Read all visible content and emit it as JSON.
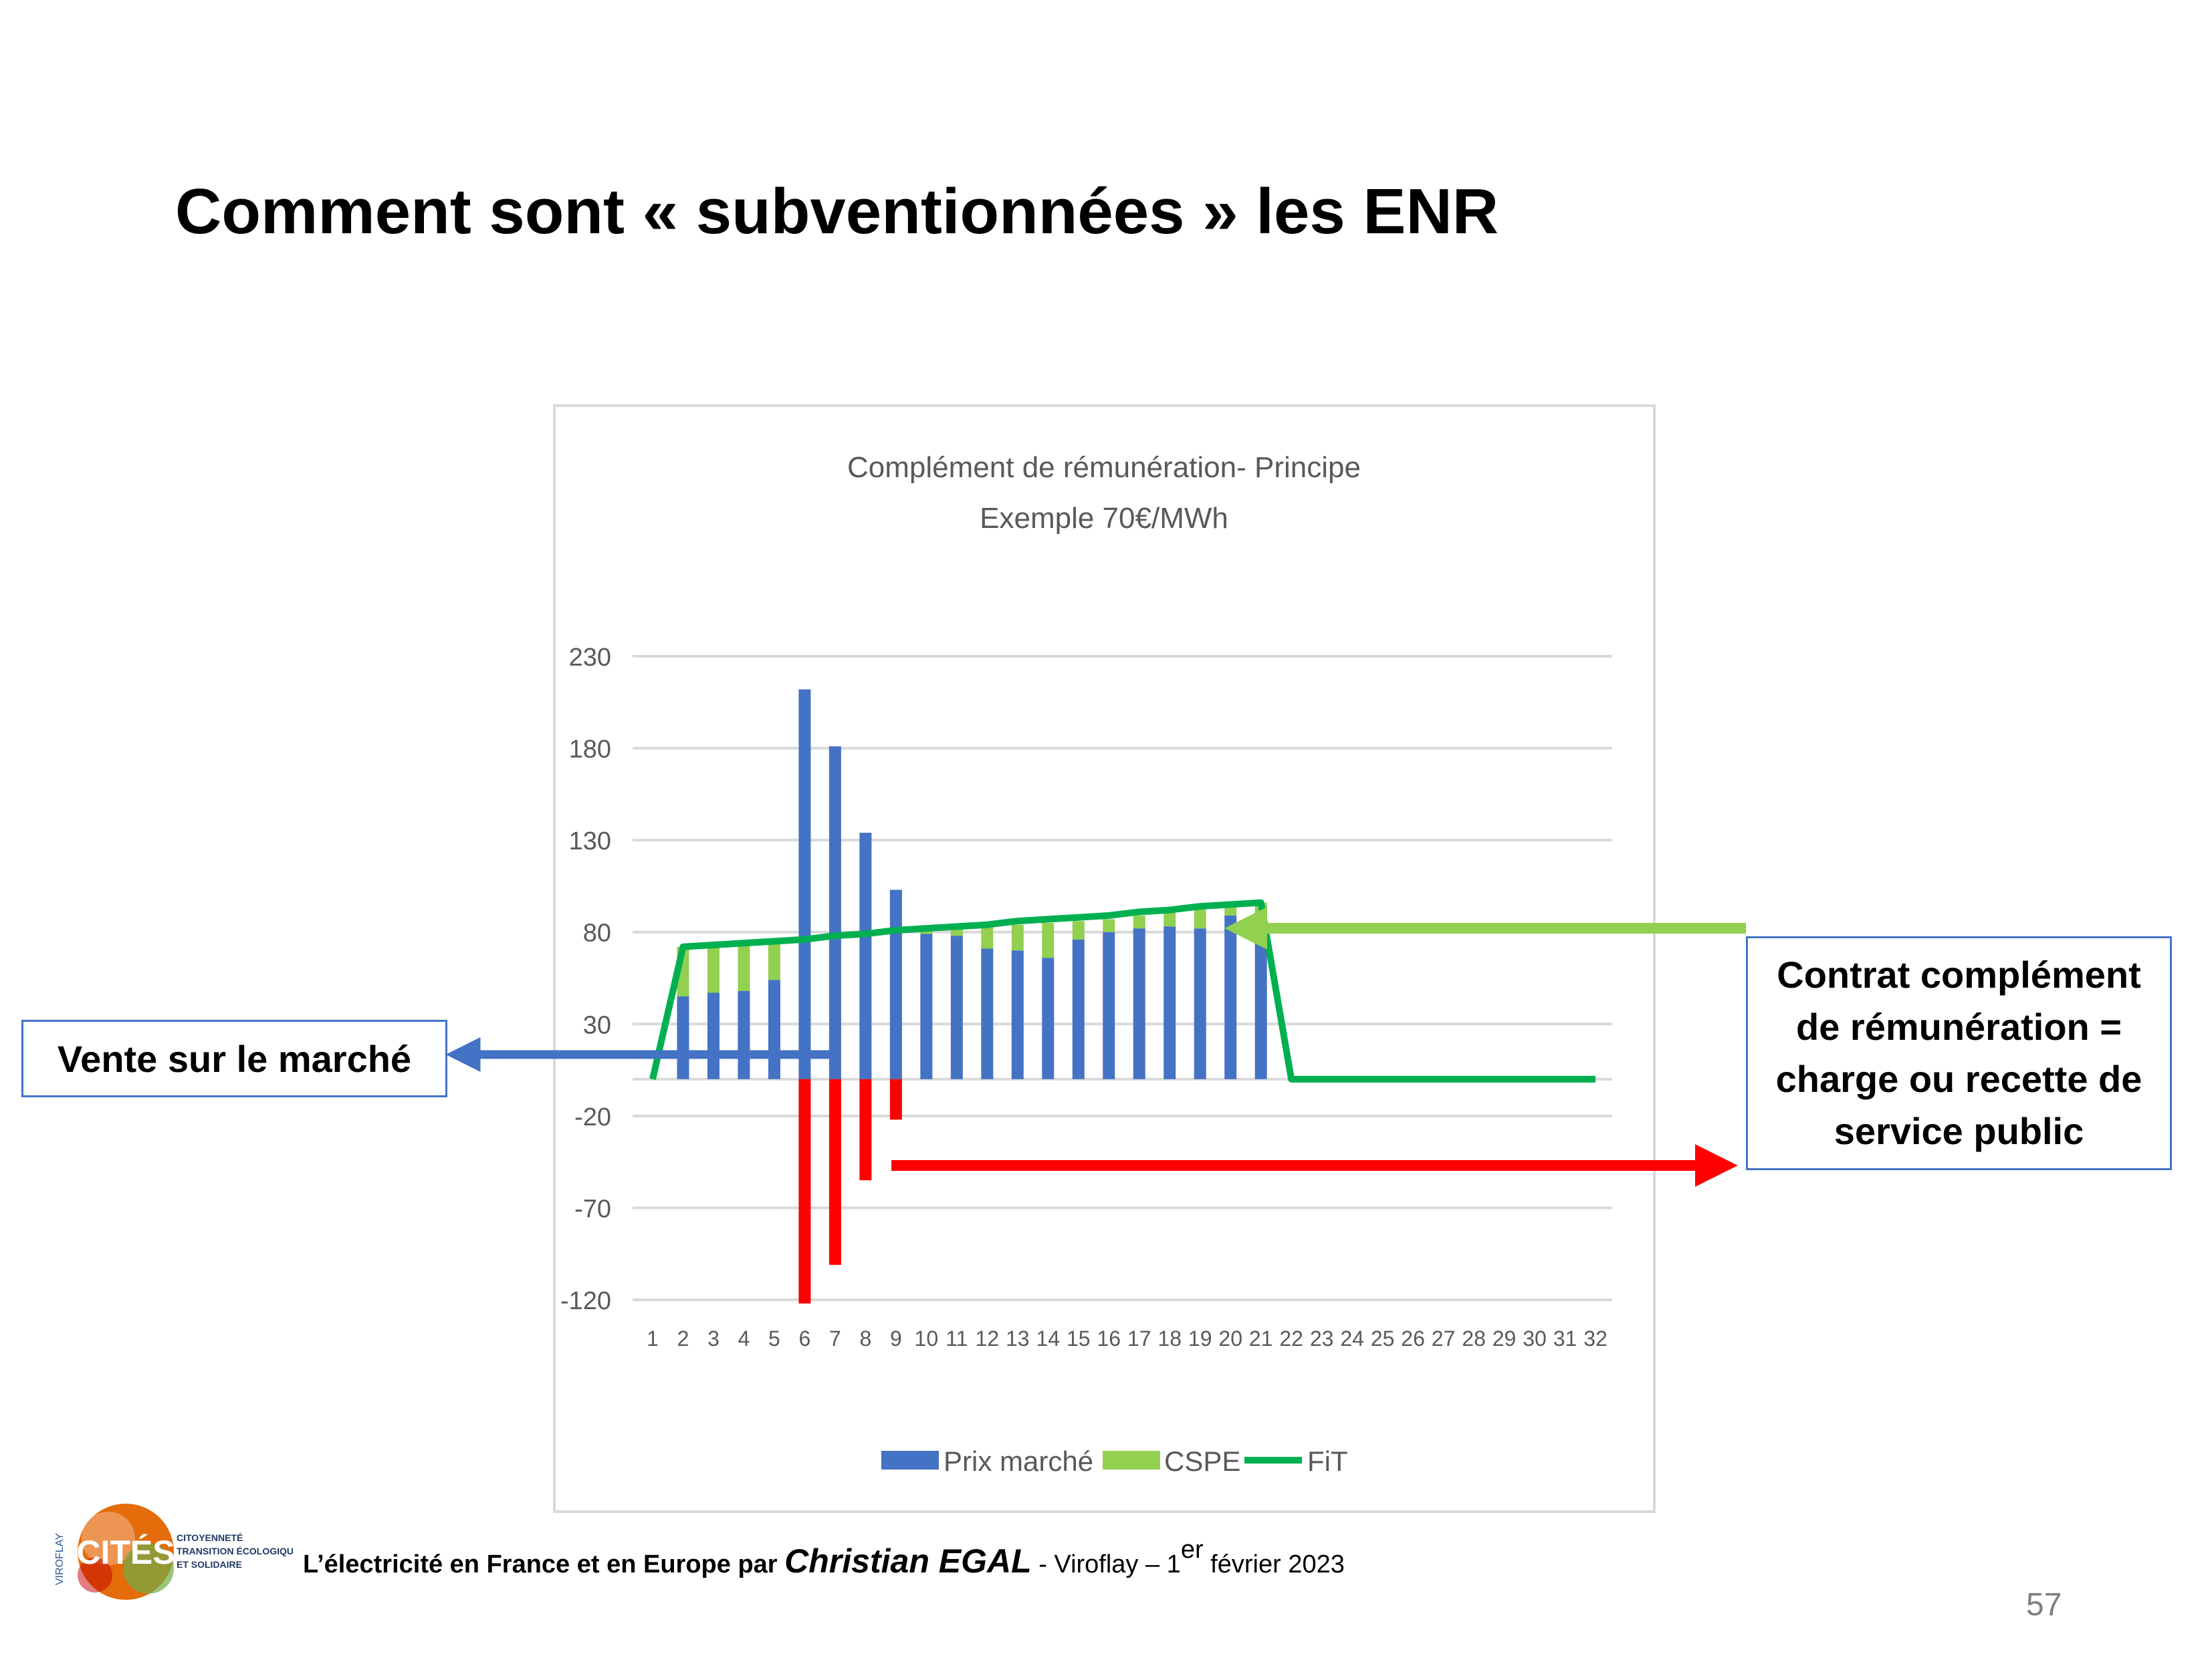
{
  "slide": {
    "title": "Comment sont « subventionnées » les ENR",
    "callout_left": "Vente sur le marché",
    "callout_right": "Contrat complément de rémunération = charge ou recette de service public",
    "footer": {
      "prefix": "L’électricité en France et en Europe par ",
      "author": "Christian EGAL",
      "suffix_before_sup": " - Viroflay – 1",
      "sup": "er",
      "suffix_after_sup": " février 2023"
    },
    "page_number": "57",
    "logo": {
      "side_text": "VIROFLAY",
      "name": "CITÉS",
      "line1": "CITOYENNETÉ",
      "line2": "TRANSITION ÉCOLOGIQUE",
      "line3": "ET SOLIDAIRE"
    }
  },
  "colors": {
    "market_bar": "#4472c4",
    "cspe_bar": "#92d050",
    "fit_line": "#00b050",
    "negative_bar": "#ff0000",
    "green_arrow": "#92d050",
    "blue_arrow": "#4472c4",
    "red_arrow": "#ff0000"
  },
  "chart_data": {
    "type": "bar",
    "title": "Complément de rémunération- Principe",
    "subtitle": "Exemple 70€/MWh",
    "x": [
      1,
      2,
      3,
      4,
      5,
      6,
      7,
      8,
      9,
      10,
      11,
      12,
      13,
      14,
      15,
      16,
      17,
      18,
      19,
      20,
      21,
      22,
      23,
      24,
      25,
      26,
      27,
      28,
      29,
      30,
      31,
      32
    ],
    "y_ticks": [
      230,
      180,
      130,
      80,
      30,
      -20,
      -70,
      -120
    ],
    "ylim": [
      -120,
      230
    ],
    "grid": true,
    "legend_position": "bottom",
    "series": [
      {
        "name": "Prix marché",
        "kind": "bar",
        "values": [
          0,
          45,
          47,
          48,
          54,
          212,
          181,
          134,
          103,
          79,
          78,
          71,
          70,
          66,
          76,
          80,
          82,
          83,
          82,
          89,
          79,
          0,
          0,
          0,
          0,
          0,
          0,
          0,
          0,
          0,
          0,
          0
        ]
      },
      {
        "name": "CSPE",
        "kind": "bar",
        "values": [
          0,
          27,
          26,
          26,
          20,
          -122,
          -101,
          -55,
          -22,
          2,
          4,
          12,
          14,
          19,
          10,
          7,
          7,
          8,
          11,
          5,
          17,
          0,
          0,
          0,
          0,
          0,
          0,
          0,
          0,
          0,
          0,
          0
        ]
      },
      {
        "name": "FiT",
        "kind": "line",
        "values": [
          0,
          72,
          73,
          74,
          75,
          76,
          78,
          79,
          81,
          82,
          83,
          84,
          86,
          87,
          88,
          89,
          91,
          92,
          94,
          95,
          96,
          0,
          0,
          0,
          0,
          0,
          0,
          0,
          0,
          0,
          0,
          0
        ]
      }
    ]
  }
}
